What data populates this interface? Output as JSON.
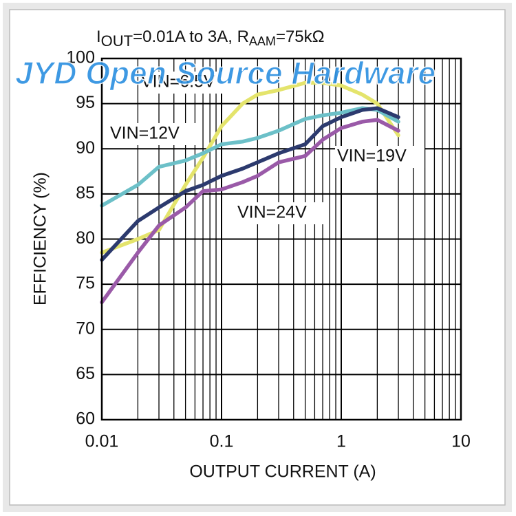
{
  "chart_data": {
    "type": "line",
    "title": [
      "I",
      "OUT",
      "=0.01A to 3A, R",
      "AAM",
      "=75kΩ"
    ],
    "watermark": "JYD Open Source Hardware",
    "x_label": "OUTPUT CURRENT (A)",
    "y_label": "EFFICIENCY (%)",
    "x": [
      0.01,
      0.02,
      0.03,
      0.05,
      0.07,
      0.1,
      0.15,
      0.2,
      0.3,
      0.5,
      0.7,
      1,
      1.5,
      2,
      3
    ],
    "series": [
      {
        "name": "VIN=6.5V",
        "color": "#e4e46c",
        "values": [
          78.5,
          80,
          81,
          86,
          89,
          92.5,
          95,
          96,
          96.5,
          97.3,
          97.3,
          97,
          96,
          95,
          91.5
        ]
      },
      {
        "name": "VIN=12V",
        "color": "#6cc0c8",
        "values": [
          83.7,
          86,
          88,
          88.7,
          89.5,
          90.5,
          90.8,
          91.2,
          92,
          93.3,
          93.7,
          94,
          94.5,
          94.3,
          93
        ]
      },
      {
        "name": "VIN=19V",
        "color": "#2c3a6e",
        "values": [
          77.7,
          82,
          83.5,
          85.3,
          86,
          87,
          87.8,
          88.5,
          89.5,
          90.5,
          92.5,
          93.5,
          94.3,
          94.5,
          93.5
        ]
      },
      {
        "name": "VIN=24V",
        "color": "#9a5aa8",
        "values": [
          73,
          78.5,
          81.5,
          83.5,
          85.3,
          85.5,
          86.3,
          87,
          88.5,
          89.2,
          91,
          92.3,
          93,
          93.2,
          92
        ]
      }
    ],
    "xlim": [
      0.01,
      10
    ],
    "xticks": [
      0.01,
      0.1,
      1,
      10
    ],
    "xminorticks": [
      0.02,
      0.03,
      0.04,
      0.05,
      0.06,
      0.07,
      0.08,
      0.09,
      0.2,
      0.3,
      0.4,
      0.5,
      0.6,
      0.7,
      0.8,
      0.9,
      2,
      3,
      4,
      5,
      6,
      7,
      8,
      9
    ],
    "xscale": "log",
    "ylim": [
      60,
      100
    ],
    "yticks": [
      60,
      65,
      70,
      75,
      80,
      85,
      90,
      95,
      100
    ],
    "grid": true
  }
}
